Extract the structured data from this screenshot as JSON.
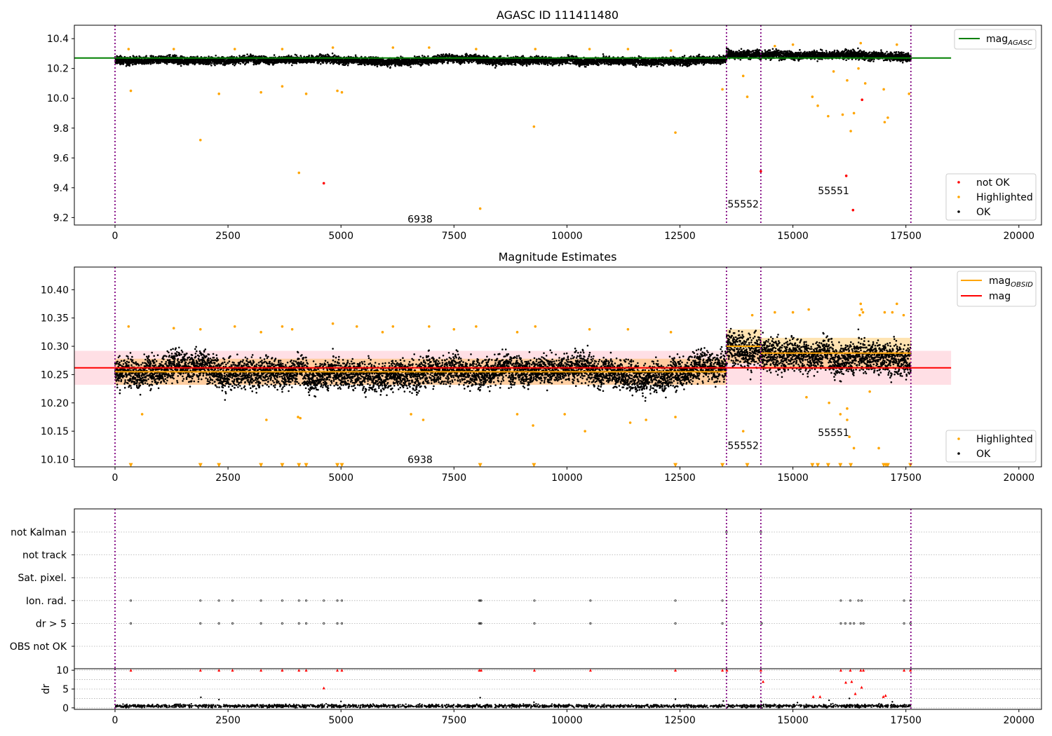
{
  "chart_data": [
    {
      "type": "scatter",
      "title": "AGASC ID 111411480",
      "xlabel": "",
      "ylabel": "",
      "xlim": [
        -900,
        20500
      ],
      "ylim": [
        9.15,
        10.49
      ],
      "xticks": [
        "0",
        "2500",
        "5000",
        "7500",
        "10000",
        "12500",
        "15000",
        "17500",
        "20000"
      ],
      "yticks": [
        "9.2",
        "9.4",
        "9.6",
        "9.8",
        "10.0",
        "10.2",
        "10.4"
      ],
      "obsid_boundaries": [
        0,
        13530,
        14290,
        17610
      ],
      "annotations": [
        {
          "text": "6938",
          "x": 6750,
          "y": 9.19
        },
        {
          "text": "55552",
          "x": 13900,
          "y": 9.29
        },
        {
          "text": "55551",
          "x": 15900,
          "y": 9.38
        }
      ],
      "reference_line": {
        "name": "mag_AGASC",
        "value": 10.27,
        "color": "#008000",
        "x_range": [
          -900,
          18500
        ]
      },
      "series": [
        {
          "name": "not OK",
          "color": "#ff0000",
          "points": [
            [
              4620,
              9.43
            ],
            [
              14290,
              9.51
            ],
            [
              16180,
              9.48
            ],
            [
              16330,
              9.25
            ],
            [
              16530,
              9.99
            ]
          ]
        },
        {
          "name": "Highlighted",
          "color": "#ffa500",
          "points": [
            [
              350,
              10.05
            ],
            [
              1890,
              9.72
            ],
            [
              2300,
              10.03
            ],
            [
              3230,
              10.04
            ],
            [
              3700,
              10.08
            ],
            [
              4070,
              9.5
            ],
            [
              4230,
              10.03
            ],
            [
              4920,
              10.05
            ],
            [
              5020,
              10.04
            ],
            [
              8080,
              9.26
            ],
            [
              9270,
              9.81
            ],
            [
              12400,
              9.77
            ],
            [
              13440,
              10.06
            ],
            [
              13900,
              10.15
            ],
            [
              13990,
              10.01
            ],
            [
              15430,
              10.01
            ],
            [
              15550,
              9.95
            ],
            [
              15780,
              9.88
            ],
            [
              16100,
              9.89
            ],
            [
              16280,
              9.78
            ],
            [
              16350,
              9.9
            ],
            [
              16600,
              10.1
            ],
            [
              17030,
              9.84
            ],
            [
              17100,
              9.87
            ],
            [
              17010,
              10.06
            ],
            [
              17570,
              10.03
            ],
            [
              16200,
              10.12
            ],
            [
              15900,
              10.18
            ],
            [
              16450,
              10.2
            ],
            [
              300,
              10.33
            ],
            [
              1300,
              10.33
            ],
            [
              2650,
              10.33
            ],
            [
              3700,
              10.33
            ],
            [
              4820,
              10.34
            ],
            [
              6150,
              10.34
            ],
            [
              6950,
              10.34
            ],
            [
              7990,
              10.33
            ],
            [
              9300,
              10.33
            ],
            [
              10500,
              10.33
            ],
            [
              11350,
              10.33
            ],
            [
              12300,
              10.32
            ],
            [
              14600,
              10.35
            ],
            [
              15000,
              10.36
            ],
            [
              16500,
              10.37
            ],
            [
              17300,
              10.36
            ]
          ]
        },
        {
          "name": "OK",
          "color": "#000000",
          "band": {
            "x_range": [
              0,
              17610
            ],
            "segments": [
              {
                "x": [
                  0,
                  13530
                ],
                "center": 10.255,
                "spread": 0.045
              },
              {
                "x": [
                  13530,
                  14290
                ],
                "center": 10.3,
                "spread": 0.05
              },
              {
                "x": [
                  14290,
                  17610
                ],
                "center": 10.285,
                "spread": 0.05
              }
            ]
          }
        }
      ],
      "legend": {
        "placement": "lower right",
        "entries": [
          "not OK",
          "Highlighted",
          "OK"
        ],
        "upper_right_entries": [
          "mag_AGASC"
        ]
      },
      "grid": false
    },
    {
      "type": "scatter",
      "title": "Magnitude Estimates",
      "xlabel": "",
      "ylabel": "",
      "xlim": [
        -900,
        20500
      ],
      "ylim": [
        10.087,
        10.44
      ],
      "xticks": [
        "0",
        "2500",
        "5000",
        "7500",
        "10000",
        "12500",
        "15000",
        "17500",
        "20000"
      ],
      "yticks": [
        "10.10",
        "10.15",
        "10.20",
        "10.25",
        "10.30",
        "10.35",
        "10.40"
      ],
      "obsid_boundaries": [
        0,
        13530,
        14290,
        17610
      ],
      "annotations": [
        {
          "text": "6938",
          "x": 6750,
          "y": 10.1
        },
        {
          "text": "55552",
          "x": 13900,
          "y": 10.125
        },
        {
          "text": "55551",
          "x": 15900,
          "y": 10.148
        }
      ],
      "mag_line": {
        "name": "mag",
        "value": 10.262,
        "color": "#ff0000",
        "x_range": [
          -900,
          18500
        ],
        "band": [
          10.232,
          10.292
        ],
        "band_color": "#ffc0cb"
      },
      "mag_obsid": {
        "name": "mag_OBSID",
        "color": "#ffa500",
        "segments": [
          {
            "x": [
              0,
              13530
            ],
            "value": 10.255,
            "band": [
              10.232,
              10.278
            ]
          },
          {
            "x": [
              13530,
              14290
            ],
            "value": 10.3,
            "band": [
              10.27,
              10.33
            ]
          },
          {
            "x": [
              14290,
              17610
            ],
            "value": 10.288,
            "band": [
              10.26,
              10.315
            ]
          }
        ]
      },
      "offscale_markers": {
        "y": 10.09,
        "color": "#ffa500",
        "x": [
          350,
          1890,
          2300,
          3230,
          3700,
          4070,
          4230,
          4920,
          5020,
          8080,
          9270,
          12400,
          13440,
          13990,
          15430,
          15550,
          15780,
          16050,
          16280,
          17010,
          17060,
          17100,
          17600
        ]
      },
      "series": [
        {
          "name": "Highlighted",
          "color": "#ffa500",
          "points": [
            [
              300,
              10.335
            ],
            [
              1300,
              10.332
            ],
            [
              1890,
              10.33
            ],
            [
              2650,
              10.335
            ],
            [
              3230,
              10.325
            ],
            [
              3700,
              10.335
            ],
            [
              3920,
              10.33
            ],
            [
              4820,
              10.34
            ],
            [
              5350,
              10.335
            ],
            [
              5920,
              10.325
            ],
            [
              6150,
              10.335
            ],
            [
              6950,
              10.335
            ],
            [
              7500,
              10.33
            ],
            [
              7990,
              10.335
            ],
            [
              8900,
              10.325
            ],
            [
              9300,
              10.335
            ],
            [
              10500,
              10.33
            ],
            [
              11350,
              10.33
            ],
            [
              12300,
              10.325
            ],
            [
              600,
              10.18
            ],
            [
              4050,
              10.175
            ],
            [
              4100,
              10.173
            ],
            [
              3350,
              10.17
            ],
            [
              6550,
              10.18
            ],
            [
              6820,
              10.17
            ],
            [
              8900,
              10.18
            ],
            [
              9250,
              10.16
            ],
            [
              9950,
              10.18
            ],
            [
              10400,
              10.15
            ],
            [
              11400,
              10.165
            ],
            [
              11750,
              10.17
            ],
            [
              12400,
              10.175
            ],
            [
              13900,
              10.15
            ],
            [
              14100,
              10.355
            ],
            [
              14600,
              10.36
            ],
            [
              15000,
              10.36
            ],
            [
              15350,
              10.365
            ],
            [
              15300,
              10.21
            ],
            [
              15800,
              10.2
            ],
            [
              16050,
              10.18
            ],
            [
              16200,
              10.17
            ],
            [
              16250,
              10.14
            ],
            [
              16350,
              10.12
            ],
            [
              16200,
              10.19
            ],
            [
              16500,
              10.375
            ],
            [
              16520,
              10.365
            ],
            [
              16480,
              10.355
            ],
            [
              16550,
              10.36
            ],
            [
              16900,
              10.12
            ],
            [
              17030,
              10.36
            ],
            [
              17200,
              10.36
            ],
            [
              17300,
              10.375
            ],
            [
              17450,
              10.355
            ],
            [
              16700,
              10.22
            ]
          ]
        },
        {
          "name": "OK",
          "color": "#000000",
          "band": {
            "x_range": [
              0,
              17610
            ],
            "segments": [
              {
                "x": [
                  0,
                  13530
                ],
                "center": 10.255,
                "spread": 0.045
              },
              {
                "x": [
                  13530,
                  14290
                ],
                "center": 10.3,
                "spread": 0.05
              },
              {
                "x": [
                  14290,
                  17610
                ],
                "center": 10.285,
                "spread": 0.05
              }
            ]
          }
        }
      ],
      "legend": {
        "placement": "lower right",
        "entries": [
          "Highlighted",
          "OK"
        ],
        "upper_right_entries": [
          "mag_OBSID",
          "mag"
        ]
      },
      "grid": false
    },
    {
      "type": "scatter",
      "title": "",
      "xlabel": "",
      "ylabel": "",
      "xlim": [
        -900,
        20500
      ],
      "categories": [
        "not Kalman",
        "not track",
        "Sat. pixel.",
        "Ion. rad.",
        "dr > 5",
        "OBS not OK"
      ],
      "obsid_boundaries": [
        0,
        13530,
        14290,
        17610
      ],
      "flag_points": {
        "not Kalman": [
          13530,
          14290
        ],
        "Ion. rad.": [
          350,
          1890,
          2300,
          2600,
          3230,
          3700,
          4070,
          4230,
          4620,
          4920,
          5020,
          8060,
          8080,
          8100,
          9280,
          10520,
          12400,
          13440,
          16060,
          16270,
          16450,
          16520,
          17460,
          17600
        ],
        "dr > 5": [
          350,
          1890,
          2300,
          2600,
          3230,
          3700,
          4070,
          4230,
          4620,
          4920,
          5020,
          8060,
          8080,
          8100,
          9280,
          10520,
          12400,
          13440,
          14310,
          16060,
          16160,
          16270,
          16350,
          16500,
          16560,
          17460,
          17600
        ]
      },
      "grid": true
    },
    {
      "type": "scatter",
      "title": "",
      "xlabel": "",
      "ylabel": "dr",
      "xlim": [
        -900,
        20500
      ],
      "ylim": [
        -0.4,
        10.4
      ],
      "xticks": [
        "0",
        "2500",
        "5000",
        "7500",
        "10000",
        "12500",
        "15000",
        "17500",
        "20000"
      ],
      "yticks": [
        "0",
        "5",
        "10"
      ],
      "obsid_boundaries": [
        0,
        13530,
        14290,
        17610
      ],
      "series": [
        {
          "name": "dr = 10 (red)",
          "color": "#ff0000",
          "points": [
            [
              350,
              10
            ],
            [
              1890,
              10
            ],
            [
              2300,
              10
            ],
            [
              2600,
              10
            ],
            [
              3230,
              10
            ],
            [
              3700,
              10
            ],
            [
              4070,
              10
            ],
            [
              4230,
              10
            ],
            [
              4920,
              10
            ],
            [
              5020,
              10
            ],
            [
              8060,
              10
            ],
            [
              8100,
              10
            ],
            [
              9280,
              10
            ],
            [
              10520,
              10
            ],
            [
              12400,
              10
            ],
            [
              13440,
              10
            ],
            [
              13540,
              10
            ],
            [
              14290,
              10
            ],
            [
              16060,
              10
            ],
            [
              16270,
              10
            ],
            [
              16500,
              10
            ],
            [
              16560,
              10
            ],
            [
              17460,
              10
            ],
            [
              17600,
              10
            ],
            [
              4620,
              5.3
            ],
            [
              14340,
              7
            ],
            [
              16170,
              6.8
            ],
            [
              16300,
              7
            ],
            [
              16520,
              5.5
            ],
            [
              15450,
              3
            ],
            [
              15600,
              3
            ],
            [
              16380,
              3.8
            ],
            [
              17000,
              3
            ],
            [
              17050,
              3.3
            ]
          ]
        },
        {
          "name": "small dr (black)",
          "color": "#000000",
          "band": {
            "x_range": [
              0,
              17610
            ],
            "center": 0.5,
            "spread": 0.45
          },
          "points": [
            [
              1900,
              2.8
            ],
            [
              2300,
              2.2
            ],
            [
              8080,
              2.7
            ],
            [
              12400,
              2.3
            ],
            [
              13460,
              1.8
            ],
            [
              5000,
              1.7
            ],
            [
              9270,
              1.5
            ],
            [
              14300,
              1.6
            ],
            [
              15100,
              1.4
            ],
            [
              16250,
              2.5
            ],
            [
              15800,
              2
            ],
            [
              17200,
              1.6
            ]
          ]
        }
      ],
      "grid": true
    }
  ]
}
